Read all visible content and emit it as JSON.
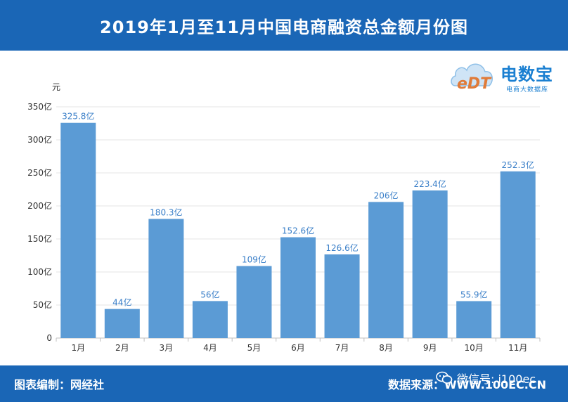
{
  "header": {
    "title": "2019年1月至11月中国电商融资总金额月份图"
  },
  "logo": {
    "brand": "电数宝",
    "sub": "电商大数据库",
    "mark": "eDT"
  },
  "footer": {
    "left": "图表编制：网经社",
    "right": "数据来源：WWW.100EC.CN",
    "wechat": "微信号: i100ec"
  },
  "colors": {
    "header_bg": "#1a66b6",
    "bar": "#5b9bd5",
    "label": "#3a7fc8"
  },
  "chart_data": {
    "type": "bar",
    "title": "2019年1月至11月中国电商融资总金额月份图",
    "ylabel": "元",
    "xlabel": "",
    "categories": [
      "1月",
      "2月",
      "3月",
      "4月",
      "5月",
      "6月",
      "7月",
      "8月",
      "9月",
      "10月",
      "11月"
    ],
    "values": [
      325.8,
      44,
      180.3,
      56,
      109,
      152.6,
      126.6,
      206,
      223.4,
      55.9,
      252.3
    ],
    "data_labels": [
      "325.8亿",
      "44亿",
      "180.3亿",
      "56亿",
      "109亿",
      "152.6亿",
      "126.6亿",
      "206亿",
      "223.4亿",
      "55.9亿",
      "252.3亿"
    ],
    "yticks": [
      0,
      50,
      100,
      150,
      200,
      250,
      300,
      350
    ],
    "ytick_labels": [
      "0",
      "50亿",
      "100亿",
      "150亿",
      "200亿",
      "250亿",
      "300亿",
      "350亿"
    ],
    "ylim": [
      0,
      350
    ],
    "grid": true,
    "legend": "none"
  }
}
